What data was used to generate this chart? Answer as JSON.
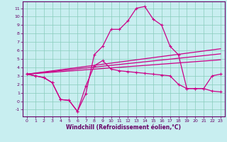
{
  "xlabel": "Windchill (Refroidissement éolien,°C)",
  "background_color": "#c8eef0",
  "grid_color": "#88ccbb",
  "line_color": "#cc0088",
  "xlim": [
    -0.5,
    23.5
  ],
  "ylim": [
    -1.8,
    11.8
  ],
  "xticks": [
    0,
    1,
    2,
    3,
    4,
    5,
    6,
    7,
    8,
    9,
    10,
    11,
    12,
    13,
    14,
    15,
    16,
    17,
    18,
    19,
    20,
    21,
    22,
    23
  ],
  "yticks": [
    -1,
    0,
    1,
    2,
    3,
    4,
    5,
    6,
    7,
    8,
    9,
    10,
    11
  ],
  "line1_x": [
    0,
    1,
    2,
    3,
    4,
    5,
    6,
    7,
    8,
    9,
    10,
    11,
    12,
    13,
    14,
    15,
    16,
    17,
    18,
    19,
    20,
    21,
    22,
    23
  ],
  "line1_y": [
    3.2,
    3.0,
    2.8,
    2.2,
    0.2,
    0.1,
    -1.2,
    0.9,
    5.5,
    6.5,
    8.5,
    8.5,
    9.5,
    11.0,
    11.2,
    9.7,
    9.0,
    6.5,
    5.5,
    1.5,
    1.5,
    1.5,
    3.0,
    3.2
  ],
  "line2_x": [
    0,
    23
  ],
  "line2_y": [
    3.2,
    6.2
  ],
  "line3_x": [
    0,
    23
  ],
  "line3_y": [
    3.2,
    5.6
  ],
  "line4_x": [
    0,
    23
  ],
  "line4_y": [
    3.2,
    4.9
  ],
  "line5_x": [
    0,
    1,
    2,
    3,
    4,
    5,
    6,
    7,
    8,
    9,
    10,
    11,
    12,
    13,
    14,
    15,
    16,
    17,
    18,
    19,
    20,
    21,
    22,
    23
  ],
  "line5_y": [
    3.2,
    3.0,
    2.8,
    2.2,
    0.2,
    0.1,
    -1.2,
    1.8,
    4.2,
    4.8,
    3.8,
    3.6,
    3.5,
    3.4,
    3.3,
    3.2,
    3.1,
    3.0,
    2.0,
    1.5,
    1.5,
    1.5,
    1.2,
    1.1
  ],
  "tick_fontsize": 4.5,
  "xlabel_fontsize": 5.5,
  "spine_color": "#660066",
  "tick_color": "#660066"
}
